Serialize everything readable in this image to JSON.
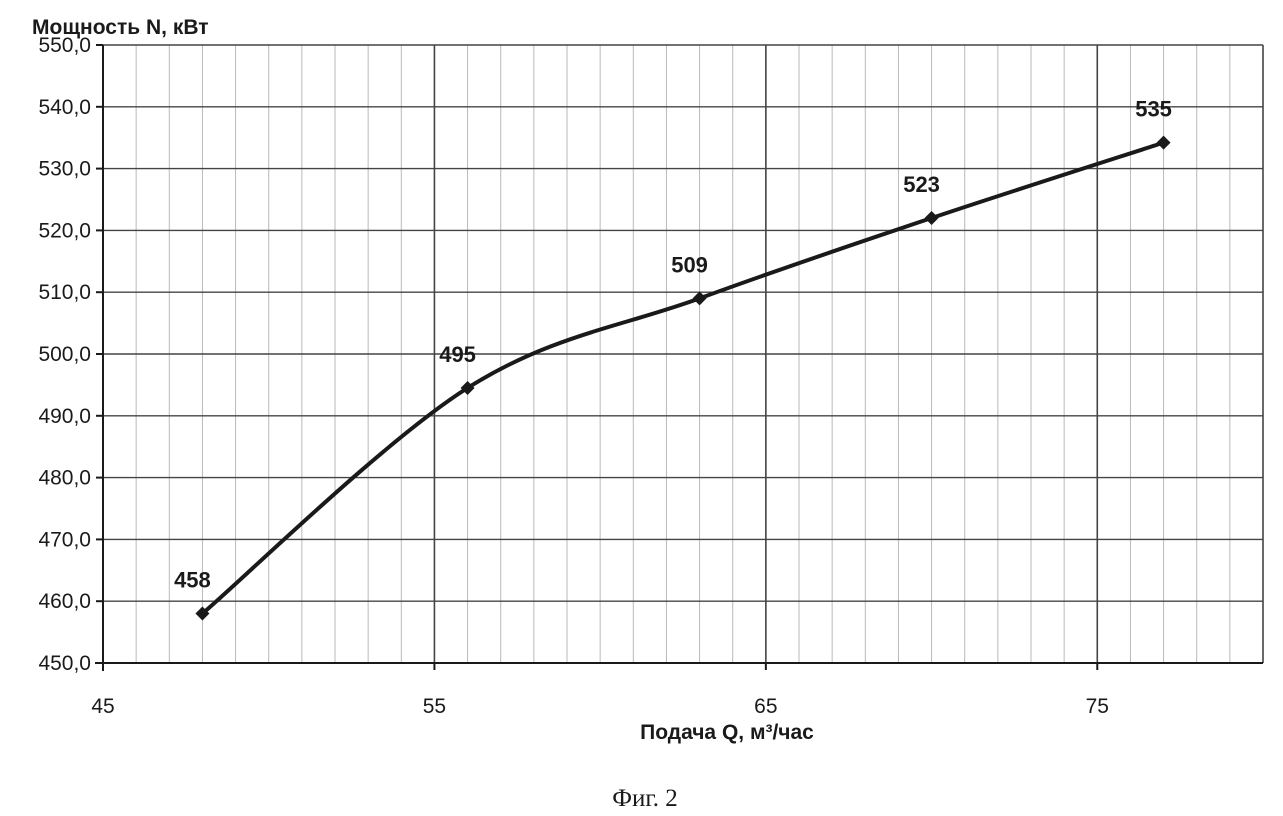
{
  "chart_data": {
    "type": "scatter",
    "ylabel": "Мощность N, кВт",
    "xlabel": "Подача Q, м³/час",
    "caption": "Фиг. 2",
    "xlim": [
      45,
      80
    ],
    "ylim": [
      450,
      550
    ],
    "x_ticks": [
      {
        "value": 45,
        "label": "45"
      },
      {
        "value": 55,
        "label": "55"
      },
      {
        "value": 65,
        "label": "65"
      },
      {
        "value": 75,
        "label": "75"
      }
    ],
    "y_ticks": [
      {
        "value": 450,
        "label": "450,0"
      },
      {
        "value": 460,
        "label": "460,0"
      },
      {
        "value": 470,
        "label": "470,0"
      },
      {
        "value": 480,
        "label": "480,0"
      },
      {
        "value": 490,
        "label": "490,0"
      },
      {
        "value": 500,
        "label": "500,0"
      },
      {
        "value": 510,
        "label": "510,0"
      },
      {
        "value": 520,
        "label": "520,0"
      },
      {
        "value": 530,
        "label": "530,0"
      },
      {
        "value": 540,
        "label": "540,0"
      },
      {
        "value": 550,
        "label": "550,0"
      }
    ],
    "grid": true,
    "minor_x_step": 1,
    "trendline": "smooth curve",
    "series": [
      {
        "marker": "diamond",
        "points": [
          {
            "x": 48,
            "y": 458,
            "label": "458"
          },
          {
            "x": 56,
            "y": 494.5,
            "label": "495"
          },
          {
            "x": 63,
            "y": 509,
            "label": "509"
          },
          {
            "x": 70,
            "y": 522,
            "label": "523"
          },
          {
            "x": 77,
            "y": 534.2,
            "label": "535"
          }
        ]
      }
    ]
  }
}
